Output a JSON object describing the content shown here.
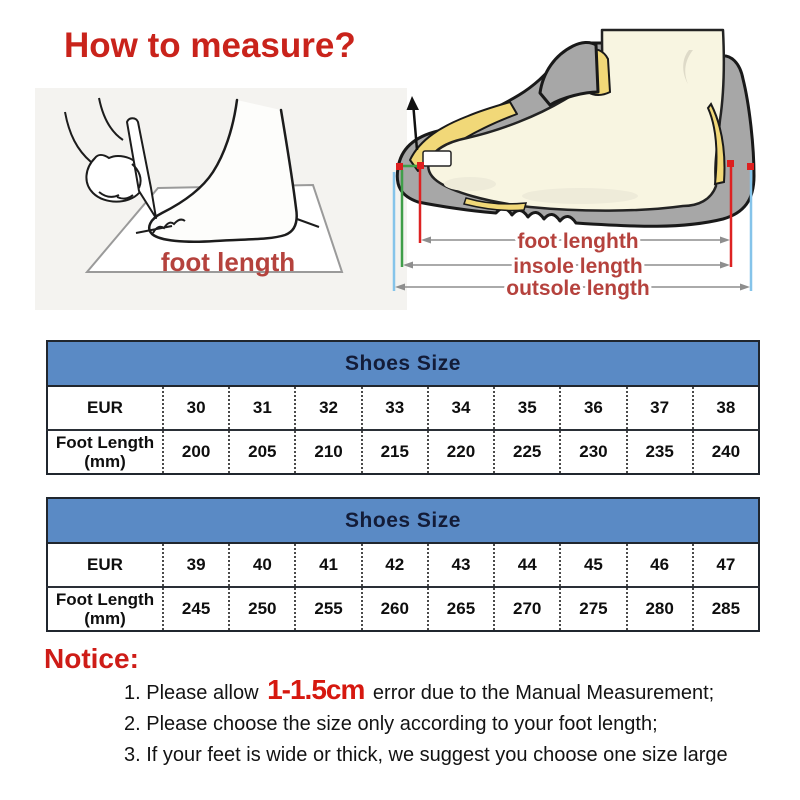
{
  "title": "How to measure?",
  "illustrations": {
    "foot_trace_label": "foot length",
    "shoe_measurements": [
      "foot lenghth",
      "insole length",
      "outsole length"
    ]
  },
  "size_tables": [
    {
      "title": "Shoes Size",
      "row1_header": "EUR",
      "row2_header": [
        "Foot Length",
        "(mm)"
      ],
      "sizes": [
        "30",
        "31",
        "32",
        "33",
        "34",
        "35",
        "36",
        "37",
        "38"
      ],
      "foot_lengths_mm": [
        "200",
        "205",
        "210",
        "215",
        "220",
        "225",
        "230",
        "235",
        "240"
      ]
    },
    {
      "title": "Shoes Size",
      "row1_header": "EUR",
      "row2_header": [
        "Foot Length",
        "(mm)"
      ],
      "sizes": [
        "39",
        "40",
        "41",
        "42",
        "43",
        "44",
        "45",
        "46",
        "47"
      ],
      "foot_lengths_mm": [
        "245",
        "250",
        "255",
        "260",
        "265",
        "270",
        "275",
        "280",
        "285"
      ]
    }
  ],
  "notice": {
    "heading": "Notice:",
    "items": [
      {
        "prefix": "1. Please allow ",
        "highlight": "1-1.5cm",
        "suffix": " error due to the Manual Measurement;"
      },
      {
        "text": "2. Please choose the size only according to your foot length;"
      },
      {
        "text": "3. If your feet is wide or thick, we suggest you choose one size large"
      }
    ]
  },
  "colors": {
    "heading_red": "#c9231b",
    "label_red": "#b5423d",
    "notice_red": "#ce1c17",
    "highlight_red": "#d6180f",
    "table_header_blue": "#5a8ac5",
    "table_header_text": "#131c38",
    "shoe_gray": "#a7a7a7",
    "insole_yellow": "#f1d878",
    "foot_cream": "#f8f5e1",
    "measure_red": "#dd2222",
    "measure_green": "#3f9e49",
    "measure_blue": "#85c4ea"
  }
}
